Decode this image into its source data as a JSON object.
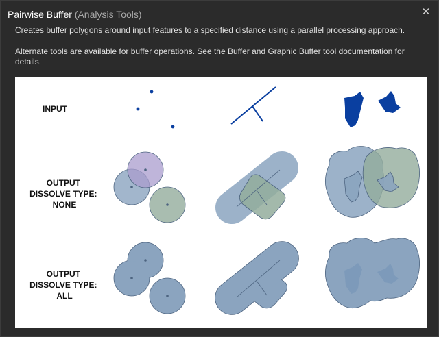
{
  "window": {
    "title": "Pairwise Buffer",
    "subtitle": "(Analysis Tools)",
    "close_glyph": "✕"
  },
  "description": {
    "line1": "Creates buffer polygons around input features to a specified distance using a parallel processing approach.",
    "line2": "Alternate tools are available for buffer operations. See the Buffer and Graphic Buffer tool documentation for details."
  },
  "figure": {
    "rows": [
      {
        "label_lines": [
          "INPUT"
        ]
      },
      {
        "label_lines": [
          "OUTPUT",
          "DISSOLVE TYPE:",
          "NONE"
        ]
      },
      {
        "label_lines": [
          "OUTPUT",
          "DISSOLVE TYPE:",
          "ALL"
        ]
      }
    ],
    "colors": {
      "input_feature": "#0a3fa0",
      "buffer_blue": "#8ba4bf",
      "buffer_purple": "#a99ccd",
      "buffer_green": "#93ad9c",
      "outline": "#4d6480"
    }
  }
}
